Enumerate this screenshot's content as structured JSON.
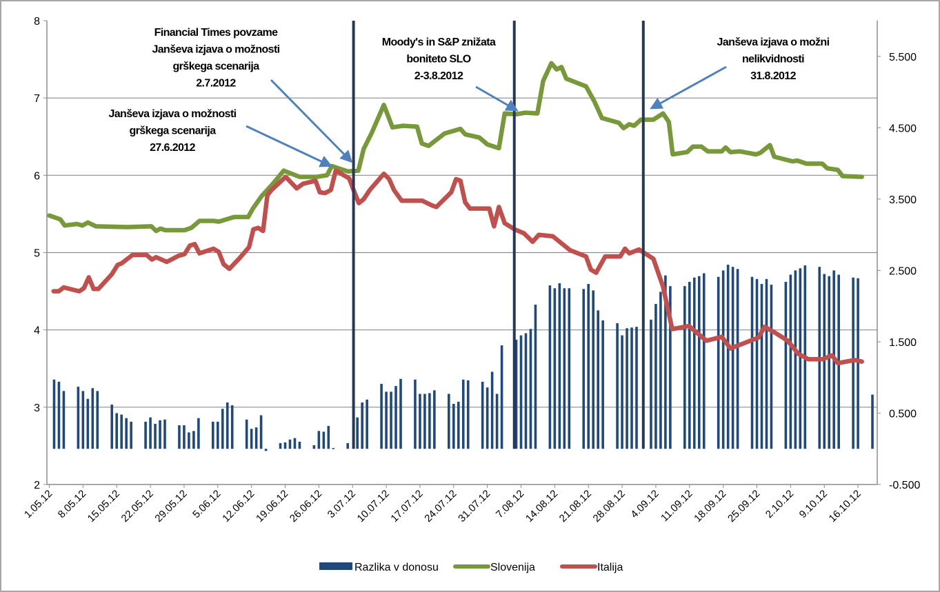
{
  "chart_data": {
    "type": "bar+line",
    "title": "",
    "xlabel": "",
    "ylabel_left": "",
    "ylabel_right": "",
    "grid": true,
    "legend_position": "bottom",
    "x_unit": "days since 1.05.2012",
    "xlim": [
      -0.5,
      172
    ],
    "ylim_left": [
      2,
      8
    ],
    "ylim_right": [
      -0.5,
      6.0
    ],
    "left_ticks": [
      2,
      3,
      4,
      5,
      6,
      7,
      8
    ],
    "left_tick_labels": [
      "2",
      "3",
      "4",
      "5",
      "6",
      "7",
      "8"
    ],
    "right_ticks": [
      -0.5,
      0.5,
      1.5,
      2.5,
      3.5,
      4.5,
      5.5
    ],
    "right_tick_labels": [
      "-0.500",
      "0.500",
      "1.500",
      "2.500",
      "3.500",
      "4.500",
      "5.500"
    ],
    "x_ticks": [
      0,
      7,
      14,
      21,
      28,
      35,
      42,
      49,
      56,
      63,
      70,
      77,
      84,
      91,
      98,
      105,
      112,
      119,
      126,
      133,
      140,
      147,
      154,
      161,
      168
    ],
    "x_tick_labels": [
      "1.05.12",
      "8.05.12",
      "15.05.12",
      "22.05.12",
      "29.05.12",
      "5.06.12",
      "12.06.12",
      "19.06.12",
      "26.06.12",
      "3.07.12",
      "10.07.12",
      "17.07.12",
      "24.07.12",
      "31.07.12",
      "7.08.12",
      "14.08.12",
      "21.08.12",
      "28.08.12",
      "4.09.12",
      "11.09.12",
      "18.09.12",
      "25.09.12",
      "2.10.12",
      "9.10.12",
      "16.10.12"
    ],
    "series": [
      {
        "name": "Razlika v donosu",
        "type": "bar",
        "axis": "right",
        "color": "#1f497d",
        "weeks": [
          {
            "monday_day": -1,
            "values": [
              null,
              null,
              0.97,
              0.94,
              0.81
            ]
          },
          {
            "monday_day": 6,
            "values": [
              0.87,
              0.81,
              0.7,
              0.85,
              0.81
            ]
          },
          {
            "monday_day": 13,
            "values": [
              0.62,
              0.5,
              0.48,
              0.43,
              0.38
            ]
          },
          {
            "monday_day": 20,
            "values": [
              0.38,
              0.44,
              0.35,
              0.4,
              0.41
            ]
          },
          {
            "monday_day": 27,
            "values": [
              0.33,
              0.33,
              0.23,
              0.25,
              0.43
            ]
          },
          {
            "monday_day": 34,
            "values": [
              0.38,
              0.38,
              0.56,
              0.65,
              0.61
            ]
          },
          {
            "monday_day": 41,
            "values": [
              0.41,
              0.28,
              0.3,
              0.47,
              -0.03
            ]
          },
          {
            "monday_day": 48,
            "values": [
              0.08,
              0.09,
              0.13,
              0.15,
              0.1
            ]
          },
          {
            "monday_day": 55,
            "values": [
              0.05,
              0.25,
              0.24,
              0.32,
              0.01
            ]
          },
          {
            "monday_day": 62,
            "values": [
              0.08,
              null,
              0.44,
              0.65,
              0.69
            ]
          },
          {
            "monday_day": 69,
            "values": [
              0.91,
              0.8,
              0.8,
              0.88,
              0.98
            ]
          },
          {
            "monday_day": 76,
            "values": [
              0.97,
              0.77,
              0.77,
              0.78,
              0.82
            ]
          },
          {
            "monday_day": 83,
            "values": [
              0.77,
              0.63,
              0.66,
              0.97,
              0.96
            ]
          },
          {
            "monday_day": 90,
            "values": [
              0.94,
              0.86,
              1.08,
              0.77,
              1.45
            ]
          },
          {
            "monday_day": 97,
            "values": [
              1.53,
              1.59,
              1.62,
              1.68,
              2.02
            ]
          },
          {
            "monday_day": 104,
            "values": [
              2.29,
              2.25,
              2.32,
              2.25,
              2.25
            ]
          },
          {
            "monday_day": 111,
            "values": [
              2.24,
              2.31,
              2.22,
              1.94,
              1.8
            ]
          },
          {
            "monday_day": 118,
            "values": [
              1.76,
              1.59,
              1.69,
              1.7,
              1.71
            ]
          },
          {
            "monday_day": 125,
            "values": [
              1.81,
              2.03,
              2.2,
              2.43,
              2.28
            ]
          },
          {
            "monday_day": 132,
            "values": [
              2.28,
              2.34,
              2.4,
              2.42,
              2.46
            ]
          },
          {
            "monday_day": 139,
            "values": [
              2.41,
              2.5,
              2.58,
              2.55,
              2.52
            ]
          },
          {
            "monday_day": 146,
            "values": [
              2.41,
              2.38,
              2.31,
              2.38,
              2.3
            ]
          },
          {
            "monday_day": 153,
            "values": [
              2.34,
              2.44,
              2.5,
              2.53,
              2.57
            ]
          },
          {
            "monday_day": 160,
            "values": [
              2.55,
              2.45,
              2.42,
              2.5,
              2.44
            ]
          },
          {
            "monday_day": 167,
            "values": [
              2.4,
              2.39,
              null,
              null,
              0.76
            ]
          }
        ]
      },
      {
        "name": "Slovenija",
        "type": "line",
        "axis": "left",
        "color": "#77993a",
        "points": [
          [
            0,
            5.48
          ],
          [
            2.3,
            5.43
          ],
          [
            3.2,
            5.35
          ],
          [
            5.7,
            5.37
          ],
          [
            6.9,
            5.35
          ],
          [
            8.0,
            5.39
          ],
          [
            9.7,
            5.34
          ],
          [
            16.2,
            5.33
          ],
          [
            21.2,
            5.34
          ],
          [
            22.2,
            5.28
          ],
          [
            23.1,
            5.31
          ],
          [
            24.1,
            5.29
          ],
          [
            28.1,
            5.29
          ],
          [
            29.5,
            5.32
          ],
          [
            31.2,
            5.41
          ],
          [
            34.1,
            5.41
          ],
          [
            35.2,
            5.4
          ],
          [
            38.4,
            5.46
          ],
          [
            41.3,
            5.46
          ],
          [
            42.3,
            5.57
          ],
          [
            44.1,
            5.73
          ],
          [
            46.3,
            5.88
          ],
          [
            48.7,
            6.06
          ],
          [
            52.0,
            5.98
          ],
          [
            55.6,
            5.98
          ],
          [
            57.7,
            6.0
          ],
          [
            58.7,
            6.12
          ],
          [
            62.0,
            6.05
          ],
          [
            64.2,
            6.06
          ],
          [
            65.3,
            6.34
          ],
          [
            67.0,
            6.55
          ],
          [
            69.5,
            6.91
          ],
          [
            71.3,
            6.62
          ],
          [
            73.5,
            6.64
          ],
          [
            76.4,
            6.63
          ],
          [
            77.4,
            6.41
          ],
          [
            78.8,
            6.38
          ],
          [
            82.1,
            6.54
          ],
          [
            85.4,
            6.6
          ],
          [
            86.4,
            6.53
          ],
          [
            89.3,
            6.49
          ],
          [
            91.0,
            6.4
          ],
          [
            93.4,
            6.35
          ],
          [
            94.6,
            6.8
          ],
          [
            97.1,
            6.79
          ],
          [
            98.9,
            6.81
          ],
          [
            101.4,
            6.8
          ],
          [
            102.6,
            7.22
          ],
          [
            104.3,
            7.45
          ],
          [
            105.4,
            7.37
          ],
          [
            106.4,
            7.4
          ],
          [
            107.4,
            7.25
          ],
          [
            111.5,
            7.15
          ],
          [
            113.2,
            6.96
          ],
          [
            114.8,
            6.74
          ],
          [
            118.3,
            6.68
          ],
          [
            119.3,
            6.61
          ],
          [
            120.5,
            6.66
          ],
          [
            121.5,
            6.64
          ],
          [
            122.9,
            6.72
          ],
          [
            125.5,
            6.72
          ],
          [
            127.5,
            6.8
          ],
          [
            128.7,
            6.69
          ],
          [
            129.5,
            6.27
          ],
          [
            132.5,
            6.3
          ],
          [
            133.7,
            6.37
          ],
          [
            135.5,
            6.37
          ],
          [
            136.8,
            6.31
          ],
          [
            139.7,
            6.31
          ],
          [
            140.5,
            6.36
          ],
          [
            141.5,
            6.3
          ],
          [
            143.4,
            6.31
          ],
          [
            146.8,
            6.27
          ],
          [
            147.7,
            6.29
          ],
          [
            149.7,
            6.39
          ],
          [
            150.6,
            6.24
          ],
          [
            154.4,
            6.18
          ],
          [
            155.4,
            6.19
          ],
          [
            157.3,
            6.15
          ],
          [
            160.6,
            6.15
          ],
          [
            161.6,
            6.09
          ],
          [
            163.8,
            6.07
          ],
          [
            164.8,
            5.99
          ],
          [
            168.8,
            5.98
          ]
        ]
      },
      {
        "name": "Italija",
        "type": "line",
        "axis": "left",
        "color": "#c0504d",
        "points": [
          [
            0.9,
            4.5
          ],
          [
            2.0,
            4.5
          ],
          [
            3.0,
            4.55
          ],
          [
            6.2,
            4.5
          ],
          [
            7.2,
            4.54
          ],
          [
            8.2,
            4.68
          ],
          [
            9.2,
            4.53
          ],
          [
            10.2,
            4.53
          ],
          [
            13.0,
            4.72
          ],
          [
            14.2,
            4.84
          ],
          [
            15.0,
            4.86
          ],
          [
            17.3,
            4.97
          ],
          [
            20.2,
            4.97
          ],
          [
            21.3,
            4.91
          ],
          [
            22.2,
            4.94
          ],
          [
            24.4,
            4.88
          ],
          [
            26.9,
            4.96
          ],
          [
            28.1,
            4.98
          ],
          [
            29.2,
            5.09
          ],
          [
            30.2,
            5.11
          ],
          [
            31.2,
            4.99
          ],
          [
            34.1,
            5.05
          ],
          [
            35.2,
            5.01
          ],
          [
            36.2,
            4.85
          ],
          [
            37.4,
            4.79
          ],
          [
            39.4,
            4.92
          ],
          [
            41.5,
            5.07
          ],
          [
            42.4,
            5.3
          ],
          [
            43.4,
            5.32
          ],
          [
            44.4,
            5.28
          ],
          [
            45.3,
            5.74
          ],
          [
            46.0,
            5.8
          ],
          [
            49.1,
            5.98
          ],
          [
            51.4,
            5.83
          ],
          [
            52.7,
            5.89
          ],
          [
            55.3,
            5.93
          ],
          [
            56.2,
            5.78
          ],
          [
            57.3,
            5.77
          ],
          [
            58.5,
            5.81
          ],
          [
            59.5,
            6.06
          ],
          [
            62.3,
            5.96
          ],
          [
            63.2,
            5.81
          ],
          [
            64.3,
            5.64
          ],
          [
            65.3,
            5.69
          ],
          [
            66.6,
            5.81
          ],
          [
            69.5,
            6.02
          ],
          [
            70.6,
            5.95
          ],
          [
            71.6,
            5.81
          ],
          [
            73.2,
            5.67
          ],
          [
            77.5,
            5.67
          ],
          [
            79.5,
            5.61
          ],
          [
            80.4,
            5.59
          ],
          [
            83.5,
            5.78
          ],
          [
            84.5,
            5.95
          ],
          [
            85.4,
            5.93
          ],
          [
            86.4,
            5.65
          ],
          [
            87.4,
            5.57
          ],
          [
            91.4,
            5.57
          ],
          [
            92.4,
            5.34
          ],
          [
            93.4,
            5.59
          ],
          [
            94.6,
            5.38
          ],
          [
            96.7,
            5.3
          ],
          [
            98.6,
            5.25
          ],
          [
            100.4,
            5.14
          ],
          [
            101.7,
            5.23
          ],
          [
            104.6,
            5.21
          ],
          [
            106.4,
            5.12
          ],
          [
            108.2,
            5.03
          ],
          [
            111.5,
            4.95
          ],
          [
            112.5,
            4.78
          ],
          [
            113.6,
            4.74
          ],
          [
            115.5,
            4.95
          ],
          [
            118.6,
            4.95
          ],
          [
            119.6,
            5.05
          ],
          [
            120.5,
            4.99
          ],
          [
            122.5,
            5.04
          ],
          [
            125.5,
            4.92
          ],
          [
            127.5,
            4.56
          ],
          [
            129.4,
            4.01
          ],
          [
            132.9,
            4.05
          ],
          [
            134.4,
            3.97
          ],
          [
            136.5,
            3.86
          ],
          [
            139.7,
            3.91
          ],
          [
            141.5,
            3.76
          ],
          [
            147.3,
            3.9
          ],
          [
            148.6,
            4.04
          ],
          [
            150.6,
            3.97
          ],
          [
            153.4,
            3.86
          ],
          [
            155.6,
            3.69
          ],
          [
            157.7,
            3.62
          ],
          [
            160.6,
            3.62
          ],
          [
            162.6,
            3.67
          ],
          [
            163.8,
            3.57
          ],
          [
            167.3,
            3.61
          ],
          [
            168.8,
            3.59
          ]
        ]
      }
    ],
    "event_lines": [
      {
        "day": 63.2,
        "color": "#253858"
      },
      {
        "day": 96.6,
        "color": "#253858"
      },
      {
        "day": 123.4,
        "color": "#253858"
      }
    ],
    "annotations": [
      {
        "lines": [
          "Financial Times povzame",
          "Janševa izjava o možnosti",
          "grškega scenarija",
          "2.7.2012"
        ]
      },
      {
        "lines": [
          "Janševa izjava o možnosti",
          "grškega scenarija",
          "27.6.2012"
        ]
      },
      {
        "lines": [
          "Moody's in S&P znižata",
          "boniteto SLO",
          "2-3.8.2012"
        ]
      },
      {
        "lines": [
          "Janševa izjava o možni",
          "nelikvidnosti",
          "31.8.2012"
        ]
      }
    ],
    "arrow_color": "#4f81bd",
    "legend": [
      {
        "label": "Razlika v donosu",
        "symbol": "bar",
        "color": "#1f497d"
      },
      {
        "label": "Slovenija",
        "symbol": "line",
        "color": "#77993a"
      },
      {
        "label": "Italija",
        "symbol": "line",
        "color": "#c0504d"
      }
    ]
  }
}
